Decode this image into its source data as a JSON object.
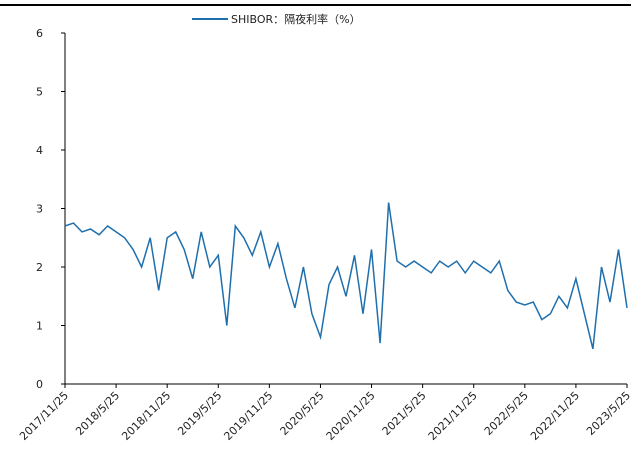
{
  "chart_data": {
    "type": "line",
    "categories": [
      "2017/11/25",
      null,
      null,
      null,
      null,
      null,
      "2018/5/25",
      null,
      null,
      null,
      null,
      null,
      "2018/11/25",
      null,
      null,
      null,
      null,
      null,
      "2019/5/25",
      null,
      null,
      null,
      null,
      null,
      "2019/11/25",
      null,
      null,
      null,
      null,
      null,
      "2020/5/25",
      null,
      null,
      null,
      null,
      null,
      "2020/11/25",
      null,
      null,
      null,
      null,
      null,
      "2021/5/25",
      null,
      null,
      null,
      null,
      null,
      "2021/11/25",
      null,
      null,
      null,
      null,
      null,
      "2022/5/25",
      null,
      null,
      null,
      null,
      null,
      "2022/11/25",
      null,
      null,
      null,
      null,
      null,
      "2023/5/25"
    ],
    "series": [
      {
        "name": "SHIBOR：隔夜利率（%）",
        "color": "#1f6fad",
        "values": [
          2.7,
          2.75,
          2.6,
          2.65,
          2.55,
          2.7,
          2.6,
          2.5,
          2.3,
          2.0,
          2.5,
          1.6,
          2.5,
          2.6,
          2.3,
          1.8,
          2.6,
          2.0,
          2.2,
          1.0,
          2.7,
          2.5,
          2.2,
          2.6,
          2.0,
          2.4,
          1.8,
          1.3,
          2.0,
          1.2,
          0.8,
          1.7,
          2.0,
          1.5,
          2.2,
          1.2,
          2.3,
          0.7,
          3.1,
          2.1,
          2.0,
          2.1,
          2.0,
          1.9,
          2.1,
          2.0,
          2.1,
          1.9,
          2.1,
          2.0,
          1.9,
          2.1,
          1.6,
          1.4,
          1.35,
          1.4,
          1.1,
          1.2,
          1.5,
          1.3,
          1.8,
          1.2,
          0.6,
          2.0,
          1.4,
          2.3,
          1.3
        ]
      }
    ],
    "ylim": [
      0,
      6
    ],
    "yticks": [
      0,
      1,
      2,
      3,
      4,
      5,
      6
    ],
    "legend": "top"
  }
}
